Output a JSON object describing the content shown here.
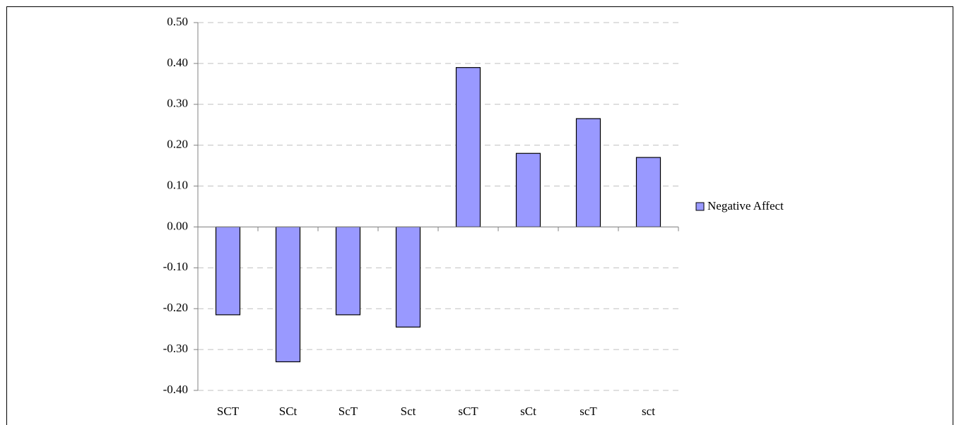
{
  "chart_data": {
    "type": "bar",
    "categories": [
      "SCT",
      "SCt",
      "ScT",
      "Sct",
      "sCT",
      "sCt",
      "scT",
      "sct"
    ],
    "series": [
      {
        "name": "Negative Affect",
        "color": "#9999ff",
        "values": [
          -0.215,
          -0.33,
          -0.215,
          -0.245,
          0.39,
          0.18,
          0.265,
          0.17
        ]
      }
    ],
    "ylim": [
      -0.4,
      0.5
    ],
    "yticks": [
      {
        "value": -0.4,
        "label": "-0.40"
      },
      {
        "value": -0.3,
        "label": "-0.30"
      },
      {
        "value": -0.2,
        "label": "-0.20"
      },
      {
        "value": -0.1,
        "label": "-0.10"
      },
      {
        "value": 0,
        "label": "0.00"
      },
      {
        "value": 0.1,
        "label": "0.10"
      },
      {
        "value": 0.2,
        "label": "0.20"
      },
      {
        "value": 0.3,
        "label": "0.30"
      },
      {
        "value": 0.4,
        "label": "0.40"
      },
      {
        "value": 0.5,
        "label": "0.50"
      }
    ],
    "grid": true,
    "legend": "right"
  }
}
